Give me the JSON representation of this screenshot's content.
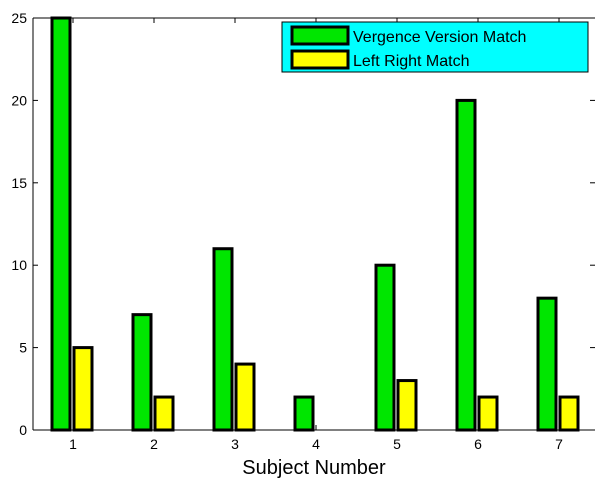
{
  "chart_data": {
    "type": "bar",
    "title": "",
    "xlabel": "Subject Number",
    "ylabel": "",
    "categories": [
      "1",
      "2",
      "3",
      "4",
      "5",
      "6",
      "7"
    ],
    "series": [
      {
        "name": "Vergence Version Match",
        "color": "#00e600",
        "values": [
          25,
          7,
          11,
          2,
          10,
          20,
          8
        ]
      },
      {
        "name": "Left Right Match",
        "color": "#ffff00",
        "values": [
          5,
          2,
          4,
          0,
          3,
          2,
          2
        ]
      }
    ],
    "yticks": [
      "0",
      "5",
      "10",
      "15",
      "20",
      "25"
    ],
    "ylim": [
      0,
      25
    ],
    "grid": false,
    "legend": {
      "placement": "top-right",
      "background": "#00ffff"
    }
  }
}
